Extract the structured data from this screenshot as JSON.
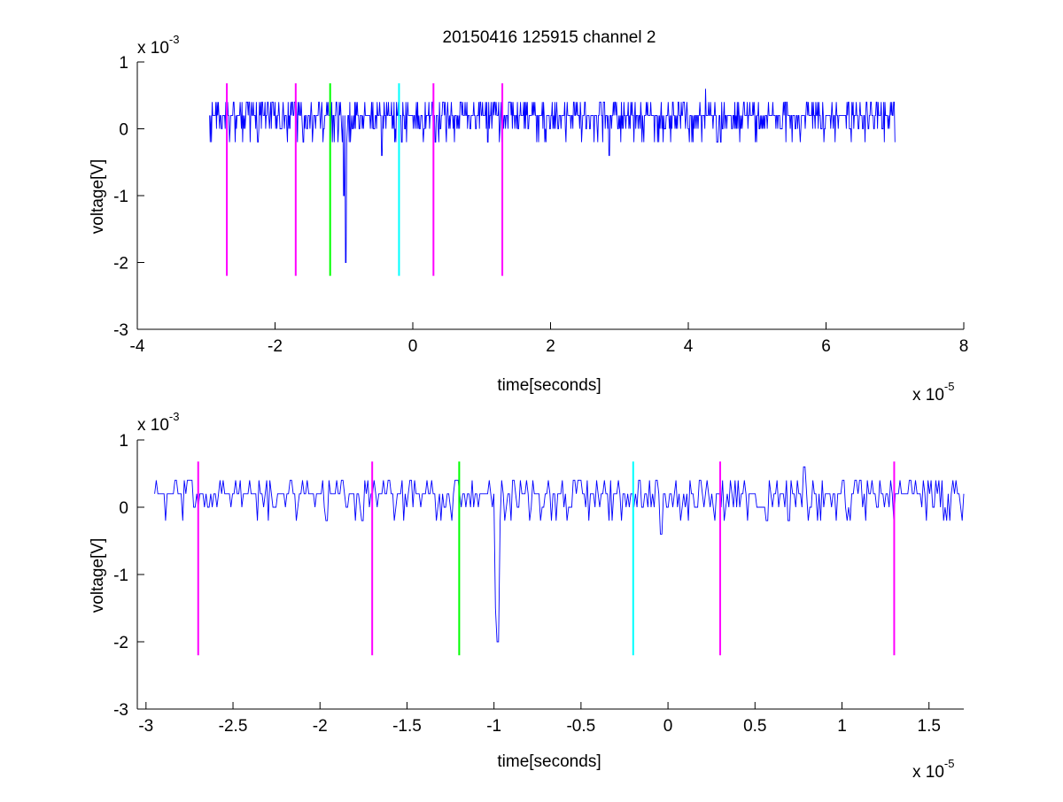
{
  "figure": {
    "title": "20150416 125915 channel 2"
  },
  "chart_data": [
    {
      "type": "line",
      "title": "20150416 125915 channel 2",
      "xlabel": "time[seconds]",
      "ylabel": "voltage[V]",
      "x_scale_label": "x 10",
      "x_scale_exp": "-5",
      "y_scale_label": "x 10",
      "y_scale_exp": "-3",
      "xlim": [
        -4,
        8
      ],
      "ylim": [
        -3,
        1
      ],
      "xticks": [
        "-4",
        "-2",
        "0",
        "2",
        "4",
        "6",
        "8"
      ],
      "yticks": [
        "1",
        "0",
        "-1",
        "-2",
        "-3"
      ],
      "grid": false,
      "signal": {
        "color": "#0000ff",
        "x_start": -2.95,
        "x_end": 7.0,
        "baseline": 0.2,
        "noise_levels": [
          -0.2,
          0,
          0.2,
          0.4
        ],
        "spikes": [
          {
            "x": -1.0,
            "y": -1.0
          },
          {
            "x": -0.97,
            "y": -2.0
          },
          {
            "x": -0.45,
            "y": -0.4
          },
          {
            "x": 2.85,
            "y": -0.4
          },
          {
            "x": 4.25,
            "y": 0.6
          }
        ]
      },
      "markers": [
        {
          "x": -2.7,
          "color": "#ff00ff",
          "y0": -2.2,
          "y1": 0.68
        },
        {
          "x": -1.7,
          "color": "#ff00ff",
          "y0": -2.2,
          "y1": 0.68
        },
        {
          "x": -1.2,
          "color": "#00ff00",
          "y0": -2.2,
          "y1": 0.68
        },
        {
          "x": -0.2,
          "color": "#00ffff",
          "y0": -2.2,
          "y1": 0.68
        },
        {
          "x": 0.3,
          "color": "#ff00ff",
          "y0": -2.2,
          "y1": 0.68
        },
        {
          "x": 1.3,
          "color": "#ff00ff",
          "y0": -2.2,
          "y1": 0.68
        }
      ]
    },
    {
      "type": "line",
      "title": "",
      "xlabel": "time[seconds]",
      "ylabel": "voltage[V]",
      "x_scale_label": "x 10",
      "x_scale_exp": "-5",
      "y_scale_label": "x 10",
      "y_scale_exp": "-3",
      "xlim": [
        -3.05,
        1.7
      ],
      "ylim": [
        -3,
        1
      ],
      "xticks": [
        "-3",
        "-2.5",
        "-2",
        "-1.5",
        "-1",
        "-0.5",
        "0",
        "0.5",
        "1",
        "1.5"
      ],
      "xtick_values": [
        -3,
        -2.5,
        -2,
        -1.5,
        -1,
        -0.5,
        0,
        0.5,
        1,
        1.5
      ],
      "yticks": [
        "1",
        "0",
        "-1",
        "-2",
        "-3"
      ],
      "grid": false,
      "signal": {
        "color": "#0000ff",
        "x_start": -2.95,
        "x_end": 1.7,
        "baseline": 0.2,
        "noise_levels": [
          -0.2,
          0,
          0.2,
          0.4
        ],
        "spikes": [
          {
            "x": -0.99,
            "y": -1.5
          },
          {
            "x": -0.98,
            "y": -2.0
          },
          {
            "x": -0.04,
            "y": -0.4
          },
          {
            "x": 0.78,
            "y": 0.6
          }
        ]
      },
      "markers": [
        {
          "x": -2.7,
          "color": "#ff00ff",
          "y0": -2.2,
          "y1": 0.68
        },
        {
          "x": -1.7,
          "color": "#ff00ff",
          "y0": -2.2,
          "y1": 0.68
        },
        {
          "x": -1.2,
          "color": "#00ff00",
          "y0": -2.2,
          "y1": 0.68
        },
        {
          "x": -0.2,
          "color": "#00ffff",
          "y0": -2.2,
          "y1": 0.68
        },
        {
          "x": 0.3,
          "color": "#ff00ff",
          "y0": -2.2,
          "y1": 0.68
        },
        {
          "x": 1.3,
          "color": "#ff00ff",
          "y0": -2.2,
          "y1": 0.68
        }
      ]
    }
  ]
}
